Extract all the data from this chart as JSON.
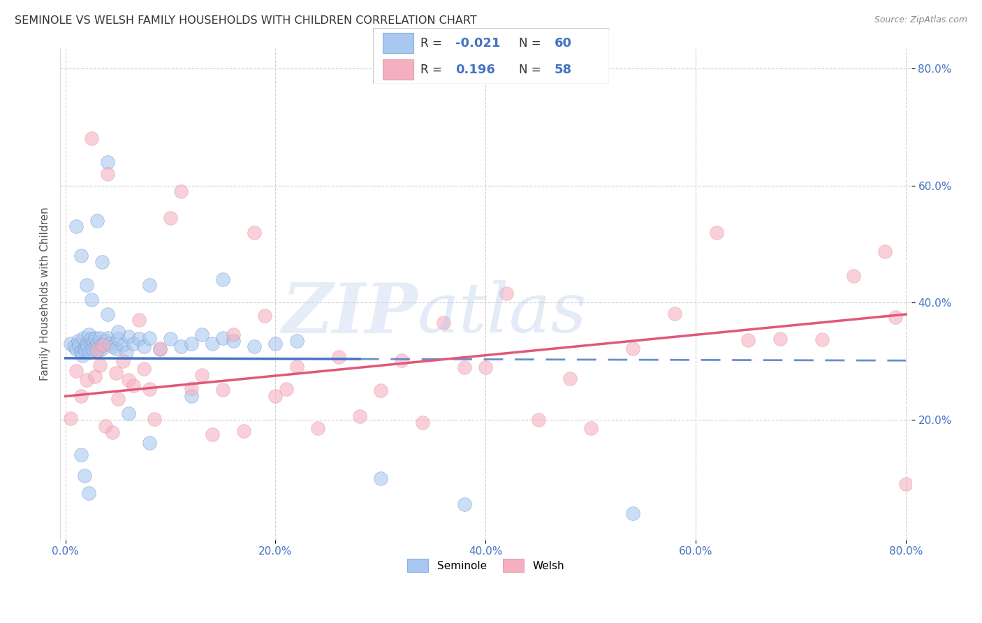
{
  "title": "SEMINOLE VS WELSH FAMILY HOUSEHOLDS WITH CHILDREN CORRELATION CHART",
  "source": "Source: ZipAtlas.com",
  "ylabel": "Family Households with Children",
  "xlim": [
    -0.005,
    0.805
  ],
  "ylim": [
    -0.005,
    0.835
  ],
  "xtick_values": [
    0.0,
    0.2,
    0.4,
    0.6,
    0.8
  ],
  "ytick_values": [
    0.2,
    0.4,
    0.6,
    0.8
  ],
  "seminole_R": -0.021,
  "seminole_N": 60,
  "welsh_R": 0.196,
  "welsh_N": 58,
  "seminole_color": "#a8c8f0",
  "welsh_color": "#f5b0c0",
  "seminole_line_color": "#4472c4",
  "welsh_line_color": "#e05878",
  "grid_color": "#cccccc",
  "background_color": "#ffffff",
  "sem_line_solid_end": 0.3,
  "sem_line_dash_end": 0.8,
  "wel_line_start": 0.0,
  "wel_line_end": 0.8,
  "sem_intercept": 0.305,
  "sem_slope": -0.005,
  "wel_intercept": 0.24,
  "wel_slope": 0.175
}
